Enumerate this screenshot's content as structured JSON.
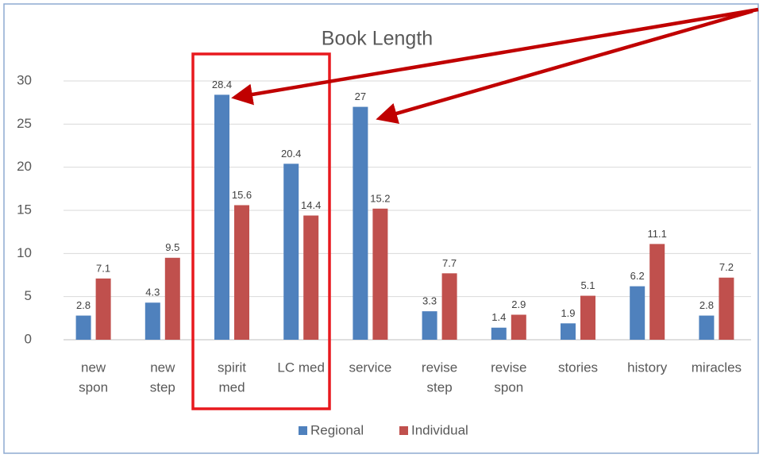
{
  "chart_data": {
    "type": "bar",
    "title": "Book Length",
    "categories": [
      [
        "new",
        "spon"
      ],
      [
        "new",
        "step"
      ],
      [
        "spirit",
        "med"
      ],
      [
        "LC med"
      ],
      [
        "service"
      ],
      [
        "revise",
        "step"
      ],
      [
        "revise",
        "spon"
      ],
      [
        "stories"
      ],
      [
        "history"
      ],
      [
        "miracles"
      ]
    ],
    "series": [
      {
        "name": "Regional",
        "color": "#4f81bd",
        "values": [
          2.8,
          4.3,
          28.4,
          20.4,
          27,
          3.3,
          1.4,
          1.9,
          6.2,
          2.8
        ]
      },
      {
        "name": "Individual",
        "color": "#c0504d",
        "values": [
          7.1,
          9.5,
          15.6,
          14.4,
          15.2,
          7.7,
          2.9,
          5.1,
          11.1,
          7.2
        ]
      }
    ],
    "ylim": [
      0,
      30
    ],
    "yticks": [
      0,
      5,
      10,
      15,
      20,
      25,
      30
    ],
    "grid": true,
    "legend": "bottom"
  }
}
